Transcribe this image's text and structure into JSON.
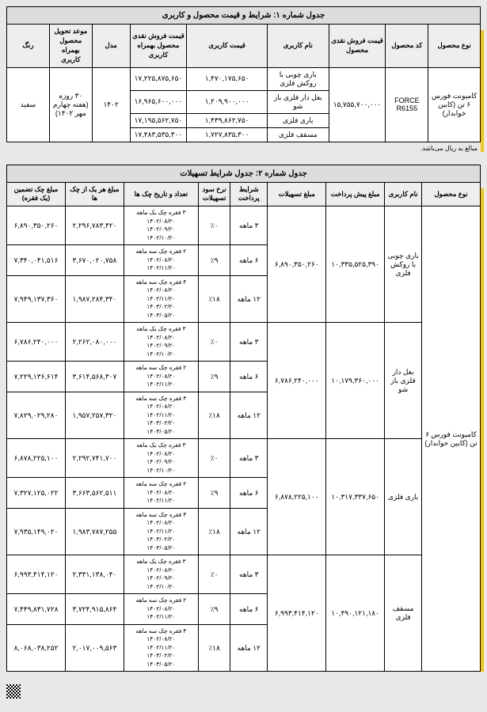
{
  "table1": {
    "title": "جدول شماره ۱: شرایط و قیمت محصول و کاربری",
    "headers": [
      "نوع محصول",
      "کد محصول",
      "قیمت فروش نقدی محصول",
      "نام کاربری",
      "قیمت کاربری",
      "قیمت فروش نقدی محصول بهمراه کاربری",
      "مدل",
      "موعد تحویل محصول بهمراه کاربری",
      "رنگ"
    ],
    "product_type": "کامیونت فورس ۶ تن (کابین خوابدار)",
    "product_code": "FORCE R6155",
    "cash_price": "۱۵,۷۵۵,۷۰۰,۰۰۰",
    "model": "۱۴۰۲",
    "delivery": "۳۰ روزه (هفته چهارم مهر ۱۴۰۲)",
    "color": "سفید",
    "rows": [
      {
        "usage": "باری چوبی با روکش فلزی",
        "usage_price": "۱,۴۷۰,۱۷۵,۶۵۰",
        "total": "۱۷,۲۲۵,۸۷۵,۶۵۰"
      },
      {
        "usage": "بغل دار فلزی باز شو",
        "usage_price": "۱,۲۰۹,۹۰۰,۰۰۰",
        "total": "۱۶,۹۶۵,۶۰۰,۰۰۰"
      },
      {
        "usage": "باری فلزی",
        "usage_price": "۱,۴۳۹,۸۶۲,۷۵۰",
        "total": "۱۷,۱۹۵,۵۶۲,۷۵۰"
      },
      {
        "usage": "مسقف فلزی",
        "usage_price": "۱,۷۲۷,۸۳۵,۳۰۰",
        "total": "۱۷,۴۸۳,۵۳۵,۳۰۰"
      }
    ],
    "note": "مبالغ به ریال می‌باشد."
  },
  "table2": {
    "title": "جدول شماره ۲: جدول شرایط تسهیلات",
    "headers": [
      "نوع محصول",
      "نام کاربری",
      "مبلغ پیش پرداخت",
      "مبلغ تسهیلات",
      "شرایط پرداخت",
      "نرخ سود تسهیلات",
      "تعداد و تاریخ چک ها",
      "مبلغ هر یک از چک ها",
      "مبلغ چک تضمین (یک فقره)"
    ],
    "product_type": "کامیونت فورس ۶ تن (کابین خوابدار)",
    "groups": [
      {
        "usage": "باری چوبی با روکش فلزی",
        "prepay": "۱۰,۳۳۵,۵۲۵,۳۹۰",
        "facility": "۶,۸۹۰,۳۵۰,۲۶۰",
        "rows": [
          {
            "term": "۳ ماهه",
            "rate": "٪۰",
            "check_desc": "۳ فقره چک یک ماهه",
            "dates": [
              "۱۴۰۲/۰۸/۲۰",
              "۱۴۰۲/۰۹/۲۰",
              "۱۴۰۲/۱۰/۲۰"
            ],
            "amount": "۲,۲۹۶,۷۸۳,۴۲۰",
            "guarantee": "۶,۸۹۰,۳۵۰,۲۶۰"
          },
          {
            "term": "۶ ماهه",
            "rate": "٪۹",
            "check_desc": "۲ فقره چک سه ماهه",
            "dates": [
              "۱۴۰۲/۰۸/۲۰",
              "۱۴۰۲/۱۱/۲۰"
            ],
            "amount": "۳,۶۷۰,۰۲۰,۷۵۸",
            "guarantee": "۷,۳۴۰,۰۴۱,۵۱۶"
          },
          {
            "term": "۱۲ ماهه",
            "rate": "٪۱۸",
            "check_desc": "۴ فقره چک سه ماهه",
            "dates": [
              "۱۴۰۲/۰۸/۲۰",
              "۱۴۰۲/۱۱/۲۰",
              "۱۴۰۳/۰۲/۲۰",
              "۱۴۰۳/۰۵/۲۰"
            ],
            "amount": "۱,۹۸۷,۲۸۴,۳۴۰",
            "guarantee": "۷,۹۴۹,۱۳۷,۳۶۰"
          }
        ]
      },
      {
        "usage": "بغل دار فلزی باز شو",
        "prepay": "۱۰,۱۷۹,۳۶۰,۰۰۰",
        "facility": "۶,۷۸۶,۲۴۰,۰۰۰",
        "rows": [
          {
            "term": "۳ ماهه",
            "rate": "٪۰",
            "check_desc": "۳ فقره چک یک ماهه",
            "dates": [
              "۱۴۰۲/۰۸/۲۰",
              "۱۴۰۲/۰۹/۲۰",
              "۱۴۰۲/۱۰/۲۰"
            ],
            "amount": "۲,۲۶۲,۰۸۰,۰۰۰",
            "guarantee": "۶,۷۸۶,۲۴۰,۰۰۰"
          },
          {
            "term": "۶ ماهه",
            "rate": "٪۹",
            "check_desc": "۲ فقره چک سه ماهه",
            "dates": [
              "۱۴۰۲/۰۸/۲۰",
              "۱۴۰۲/۱۱/۲۰"
            ],
            "amount": "۳,۶۱۴,۵۶۸,۳۰۷",
            "guarantee": "۷,۲۲۹,۱۳۶,۶۱۴"
          },
          {
            "term": "۱۲ ماهه",
            "rate": "٪۱۸",
            "check_desc": "۴ فقره چک سه ماهه",
            "dates": [
              "۱۴۰۲/۰۸/۲۰",
              "۱۴۰۲/۱۱/۲۰",
              "۱۴۰۳/۰۲/۲۰",
              "۱۴۰۳/۰۵/۲۰"
            ],
            "amount": "۱,۹۵۷,۲۵۷,۳۲۰",
            "guarantee": "۷,۸۲۹,۰۲۹,۲۸۰"
          }
        ]
      },
      {
        "usage": "باری فلزی",
        "prepay": "۱۰,۳۱۷,۳۳۷,۶۵۰",
        "facility": "۶,۸۷۸,۲۲۵,۱۰۰",
        "rows": [
          {
            "term": "۳ ماهه",
            "rate": "٪۰",
            "check_desc": "۳ فقره چک یک ماهه",
            "dates": [
              "۱۴۰۲/۰۸/۲۰",
              "۱۴۰۲/۰۹/۲۰",
              "۱۴۰۲/۱۰/۲۰"
            ],
            "amount": "۲,۲۹۲,۷۴۱,۷۰۰",
            "guarantee": "۶,۸۷۸,۲۲۵,۱۰۰"
          },
          {
            "term": "۶ ماهه",
            "rate": "٪۹",
            "check_desc": "۲ فقره چک سه ماهه",
            "dates": [
              "۱۴۰۲/۰۸/۲۰",
              "۱۴۰۲/۱۱/۲۰"
            ],
            "amount": "۳,۶۶۳,۵۶۲,۵۱۱",
            "guarantee": "۷,۳۲۷,۱۲۵,۰۲۲"
          },
          {
            "term": "۱۲ ماهه",
            "rate": "٪۱۸",
            "check_desc": "۴ فقره چک سه ماهه",
            "dates": [
              "۱۴۰۲/۰۸/۲۰",
              "۱۴۰۲/۱۱/۲۰",
              "۱۴۰۳/۰۲/۲۰",
              "۱۴۰۳/۰۵/۲۰"
            ],
            "amount": "۱,۹۸۳,۷۸۷,۲۵۵",
            "guarantee": "۷,۹۳۵,۱۴۹,۰۲۰"
          }
        ]
      },
      {
        "usage": "مسقف فلزی",
        "prepay": "۱۰,۴۹۰,۱۲۱,۱۸۰",
        "facility": "۶,۹۹۳,۴۱۴,۱۲۰",
        "rows": [
          {
            "term": "۳ ماهه",
            "rate": "٪۰",
            "check_desc": "۳ فقره چک یک ماهه",
            "dates": [
              "۱۴۰۲/۰۸/۲۰",
              "۱۴۰۲/۰۹/۲۰",
              "۱۴۰۲/۱۰/۲۰"
            ],
            "amount": "۲,۳۳۱,۱۳۸,۰۴۰",
            "guarantee": "۶,۹۹۳,۴۱۴,۱۲۰"
          },
          {
            "term": "۶ ماهه",
            "rate": "٪۹",
            "check_desc": "۲ فقره چک سه ماهه",
            "dates": [
              "۱۴۰۲/۰۸/۲۰",
              "۱۴۰۲/۱۱/۲۰"
            ],
            "amount": "۳,۷۲۴,۹۱۵,۸۶۴",
            "guarantee": "۷,۴۴۹,۸۳۱,۷۲۸"
          },
          {
            "term": "۱۲ ماهه",
            "rate": "٪۱۸",
            "check_desc": "۴ فقره چک سه ماهه",
            "dates": [
              "۱۴۰۲/۰۸/۲۰",
              "۱۴۰۲/۱۱/۲۰",
              "۱۴۰۳/۰۲/۲۰",
              "۱۴۰۳/۰۵/۲۰"
            ],
            "amount": "۲,۰۱۷,۰۰۹,۵۶۳",
            "guarantee": "۸,۰۶۸,۰۳۸,۲۵۲"
          }
        ]
      }
    ]
  }
}
